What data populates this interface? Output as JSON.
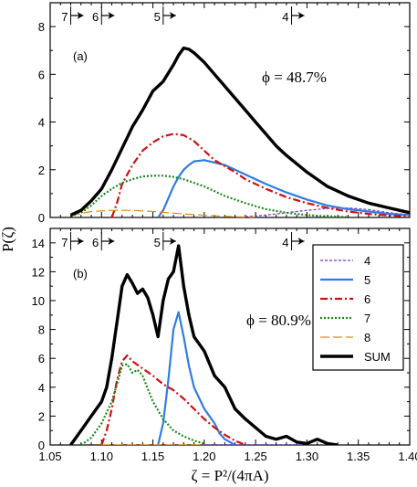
{
  "chart_data": [
    {
      "type": "line",
      "panel_label": "(a)",
      "annotation": "ϕ = 48.7%",
      "xlim": [
        1.05,
        1.4
      ],
      "ylim": [
        0,
        9
      ],
      "yticks": [
        "0",
        "2",
        "4",
        "6",
        "8"
      ],
      "markers": [
        {
          "label": "7",
          "x": 1.07
        },
        {
          "label": "6",
          "x": 1.1
        },
        {
          "label": "5",
          "x": 1.16
        },
        {
          "label": "4",
          "x": 1.285
        }
      ],
      "series": [
        {
          "name": "4",
          "color": "#7b2fc9",
          "dash": "3,2",
          "width": 1.2,
          "x": [
            1.24,
            1.26,
            1.28,
            1.3,
            1.32,
            1.34,
            1.36,
            1.38,
            1.4
          ],
          "y": [
            0.03,
            0.1,
            0.2,
            0.3,
            0.38,
            0.4,
            0.33,
            0.2,
            0.1
          ]
        },
        {
          "name": "5",
          "color": "#2f7de1",
          "dash": "",
          "width": 2.2,
          "x": [
            1.155,
            1.16,
            1.165,
            1.17,
            1.175,
            1.18,
            1.185,
            1.19,
            1.2,
            1.21,
            1.22,
            1.23,
            1.24,
            1.26,
            1.28,
            1.3,
            1.32,
            1.34,
            1.36,
            1.38,
            1.4
          ],
          "y": [
            0.0,
            0.3,
            0.8,
            1.3,
            1.7,
            2.0,
            2.2,
            2.35,
            2.4,
            2.3,
            2.2,
            2.0,
            1.8,
            1.4,
            1.05,
            0.75,
            0.5,
            0.35,
            0.25,
            0.15,
            0.1
          ]
        },
        {
          "name": "6",
          "color": "#d01010",
          "dash": "8,3,2,3",
          "width": 2.2,
          "x": [
            1.11,
            1.115,
            1.12,
            1.13,
            1.14,
            1.15,
            1.16,
            1.17,
            1.18,
            1.19,
            1.2,
            1.21,
            1.22,
            1.23,
            1.24,
            1.26,
            1.28,
            1.3,
            1.32,
            1.34,
            1.36,
            1.38,
            1.4
          ],
          "y": [
            0.0,
            0.6,
            1.4,
            2.2,
            2.8,
            3.15,
            3.4,
            3.5,
            3.45,
            3.2,
            2.8,
            2.4,
            2.15,
            1.9,
            1.6,
            1.2,
            0.85,
            0.6,
            0.4,
            0.25,
            0.15,
            0.08,
            0.05
          ]
        },
        {
          "name": "7",
          "color": "#1a8a1a",
          "dash": "2,2",
          "width": 2.2,
          "x": [
            1.07,
            1.08,
            1.09,
            1.1,
            1.11,
            1.12,
            1.13,
            1.14,
            1.15,
            1.16,
            1.17,
            1.18,
            1.19,
            1.2,
            1.21,
            1.22,
            1.24,
            1.26,
            1.28,
            1.3,
            1.32,
            1.34
          ],
          "y": [
            0.05,
            0.2,
            0.5,
            0.9,
            1.2,
            1.45,
            1.6,
            1.72,
            1.75,
            1.75,
            1.7,
            1.6,
            1.45,
            1.3,
            1.1,
            0.9,
            0.6,
            0.35,
            0.2,
            0.1,
            0.05,
            0.02
          ]
        },
        {
          "name": "8",
          "color": "#e08a1a",
          "dash": "10,4",
          "width": 1.2,
          "x": [
            1.07,
            1.09,
            1.11,
            1.13,
            1.15,
            1.17,
            1.19,
            1.21,
            1.23,
            1.25
          ],
          "y": [
            0.1,
            0.25,
            0.3,
            0.3,
            0.25,
            0.18,
            0.12,
            0.07,
            0.03,
            0.01
          ]
        },
        {
          "name": "SUM",
          "color": "#000000",
          "dash": "",
          "width": 3.4,
          "x": [
            1.07,
            1.08,
            1.09,
            1.1,
            1.11,
            1.12,
            1.13,
            1.14,
            1.15,
            1.16,
            1.17,
            1.175,
            1.18,
            1.185,
            1.19,
            1.2,
            1.21,
            1.22,
            1.23,
            1.24,
            1.25,
            1.26,
            1.27,
            1.28,
            1.3,
            1.32,
            1.34,
            1.36,
            1.38,
            1.4
          ],
          "y": [
            0.1,
            0.3,
            0.7,
            1.2,
            2.0,
            2.9,
            3.8,
            4.5,
            5.3,
            5.7,
            6.4,
            6.8,
            7.1,
            7.05,
            6.9,
            6.5,
            6.0,
            5.5,
            5.0,
            4.5,
            4.0,
            3.5,
            3.0,
            2.6,
            1.9,
            1.3,
            0.9,
            0.6,
            0.4,
            0.2
          ]
        }
      ]
    },
    {
      "type": "line",
      "panel_label": "(b)",
      "annotation": "ϕ = 80.9%",
      "xlim": [
        1.05,
        1.4
      ],
      "ylim": [
        0,
        15
      ],
      "xticks": [
        "1.05",
        "1.10",
        "1.15",
        "1.20",
        "1.25",
        "1.30",
        "1.35",
        "1.40"
      ],
      "yticks": [
        "0",
        "2",
        "4",
        "6",
        "8",
        "10",
        "12",
        "14"
      ],
      "xlabel": "ζ = P²/(4πA)",
      "legend_position": "right",
      "markers": [
        {
          "label": "7",
          "x": 1.07
        },
        {
          "label": "6",
          "x": 1.1
        },
        {
          "label": "5",
          "x": 1.16
        },
        {
          "label": "4",
          "x": 1.285
        }
      ],
      "series": [
        {
          "name": "4",
          "color": "#7b2fc9",
          "dash": "3,2",
          "width": 1.2,
          "x": [
            1.2,
            1.25,
            1.3
          ],
          "y": [
            0,
            0,
            0
          ]
        },
        {
          "name": "5",
          "color": "#2f7de1",
          "dash": "",
          "width": 2.2,
          "x": [
            1.155,
            1.16,
            1.165,
            1.17,
            1.175,
            1.18,
            1.185,
            1.19,
            1.2,
            1.21,
            1.215,
            1.22,
            1.23
          ],
          "y": [
            0.0,
            1.5,
            4.5,
            8.0,
            9.2,
            7.5,
            5.5,
            4.0,
            2.5,
            1.5,
            0.8,
            0.4,
            0.0
          ]
        },
        {
          "name": "6",
          "color": "#d01010",
          "dash": "8,3,2,3",
          "width": 2.2,
          "x": [
            1.1,
            1.105,
            1.11,
            1.115,
            1.12,
            1.125,
            1.13,
            1.14,
            1.15,
            1.16,
            1.17,
            1.18,
            1.19,
            1.2,
            1.21,
            1.22,
            1.23,
            1.24
          ],
          "y": [
            0.0,
            1.0,
            2.5,
            4.5,
            5.8,
            6.2,
            5.8,
            5.3,
            4.8,
            4.2,
            3.8,
            3.2,
            2.5,
            1.8,
            1.2,
            0.7,
            0.3,
            0.0
          ]
        },
        {
          "name": "7",
          "color": "#1a8a1a",
          "dash": "2,2",
          "width": 2.2,
          "x": [
            1.08,
            1.09,
            1.1,
            1.11,
            1.115,
            1.12,
            1.125,
            1.13,
            1.135,
            1.14,
            1.15,
            1.16,
            1.17,
            1.18,
            1.19,
            1.2
          ],
          "y": [
            0.0,
            0.5,
            1.5,
            3.0,
            4.2,
            5.5,
            5.6,
            5.0,
            5.2,
            4.8,
            3.0,
            1.8,
            1.0,
            0.6,
            0.3,
            0.1
          ]
        },
        {
          "name": "8",
          "color": "#e08a1a",
          "dash": "10,4",
          "width": 1.2,
          "x": [
            1.1,
            1.15,
            1.2
          ],
          "y": [
            0,
            0,
            0
          ]
        },
        {
          "name": "SUM",
          "color": "#000000",
          "dash": "",
          "width": 3.4,
          "x": [
            1.07,
            1.08,
            1.09,
            1.1,
            1.105,
            1.11,
            1.115,
            1.12,
            1.125,
            1.13,
            1.135,
            1.14,
            1.145,
            1.15,
            1.155,
            1.16,
            1.165,
            1.17,
            1.175,
            1.18,
            1.185,
            1.19,
            1.2,
            1.21,
            1.22,
            1.23,
            1.24,
            1.25,
            1.26,
            1.27,
            1.28,
            1.29,
            1.3,
            1.31,
            1.32,
            1.33
          ],
          "y": [
            0.0,
            1.0,
            2.0,
            3.0,
            4.0,
            6.0,
            8.5,
            11.0,
            11.8,
            11.2,
            10.5,
            10.8,
            10.2,
            9.0,
            7.5,
            10.0,
            11.5,
            12.0,
            13.8,
            11.0,
            9.0,
            7.5,
            6.5,
            4.8,
            4.0,
            2.5,
            1.8,
            1.2,
            0.6,
            0.4,
            0.6,
            0.2,
            0.1,
            0.4,
            0.1,
            0.0
          ]
        }
      ]
    }
  ],
  "ylabel": "P(ζ)"
}
